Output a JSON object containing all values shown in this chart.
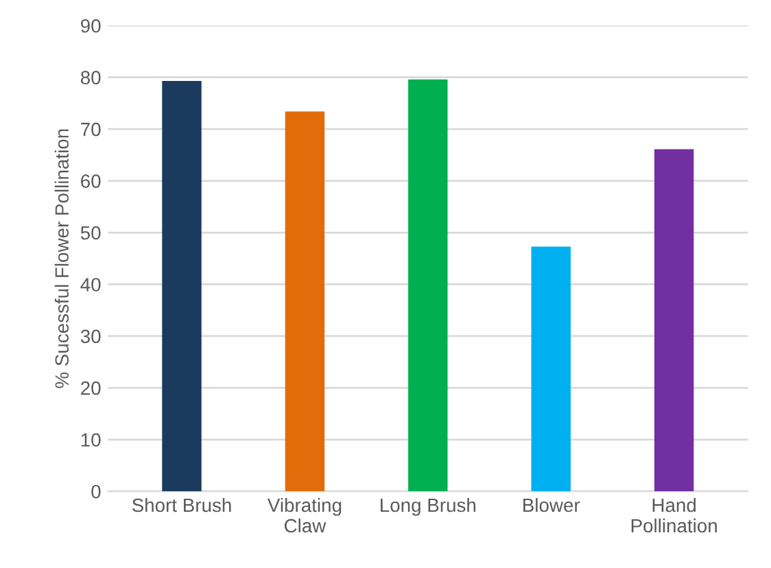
{
  "chart_data": {
    "type": "bar",
    "ylabel": "% Sucessful Flower Pollination",
    "categories": [
      "Short Brush",
      "Vibrating\nClaw",
      "Long Brush",
      "Blower",
      "Hand\nPollination"
    ],
    "values": [
      79.3,
      73.4,
      79.6,
      47.3,
      66.1
    ],
    "colors": [
      "#1a3a5e",
      "#e36c0a",
      "#00b050",
      "#00b0f0",
      "#7030a0"
    ],
    "ylim": [
      0,
      90
    ],
    "yticks": [
      0,
      10,
      20,
      30,
      40,
      50,
      60,
      70,
      80,
      90
    ],
    "grid": "y",
    "legend": false
  }
}
